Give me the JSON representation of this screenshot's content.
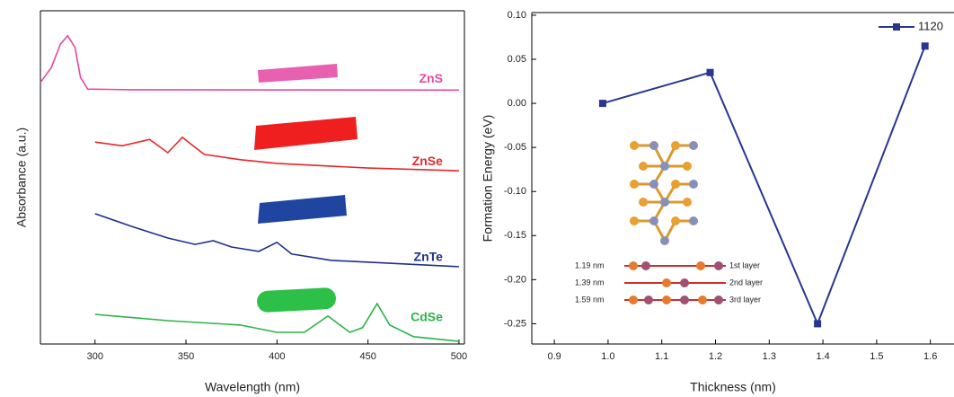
{
  "chart_data": [
    {
      "type": "line",
      "xlabel": "Wavelength (nm)",
      "ylabel": "Absorbance (a.u.)",
      "xlim": [
        270,
        503
      ],
      "ylim": [
        0,
        10
      ],
      "xticks": [
        300,
        350,
        400,
        450,
        500
      ],
      "series": [
        {
          "name": "ZnS",
          "color": "#e8489c",
          "x": [
            270,
            276,
            281,
            285,
            289,
            292,
            296,
            320,
            500
          ],
          "values": [
            7.85,
            8.3,
            9.0,
            9.25,
            8.9,
            8.0,
            7.65,
            7.63,
            7.62
          ]
        },
        {
          "name": "ZnSe",
          "color": "#e8262a",
          "x": [
            300,
            315,
            330,
            340,
            348,
            360,
            380,
            400,
            450,
            500
          ],
          "values": [
            6.06,
            5.95,
            6.14,
            5.74,
            6.2,
            5.69,
            5.53,
            5.42,
            5.28,
            5.2
          ]
        },
        {
          "name": "ZnTe",
          "color": "#1f2f8f",
          "x": [
            300,
            320,
            340,
            355,
            365,
            375,
            390,
            400,
            408,
            430,
            500
          ],
          "values": [
            3.91,
            3.53,
            3.18,
            2.99,
            3.1,
            2.91,
            2.78,
            3.05,
            2.7,
            2.51,
            2.32
          ]
        },
        {
          "name": "CdSe",
          "color": "#2bb34a",
          "x": [
            300,
            340,
            380,
            400,
            415,
            428,
            440,
            447,
            455,
            462,
            475,
            500
          ],
          "values": [
            0.89,
            0.7,
            0.57,
            0.35,
            0.35,
            0.84,
            0.35,
            0.49,
            1.21,
            0.57,
            0.22,
            0.08
          ]
        }
      ]
    },
    {
      "type": "line",
      "xlabel": "Thickness (nm)",
      "ylabel": "Formation Energy (eV)",
      "xlim": [
        0.858,
        1.644
      ],
      "ylim": [
        -0.273,
        0.103
      ],
      "xticks": [
        0.9,
        {
          "value": 1.0,
          "label": "1.0"
        },
        1.1,
        1.2,
        1.3,
        1.4,
        1.5,
        1.6
      ],
      "yticks": [
        {
          "value": 0.1,
          "label": "0.10"
        },
        0.05,
        {
          "value": 0,
          "label": "0.00"
        },
        -0.05,
        {
          "value": -0.1,
          "label": "-0.10"
        },
        -0.15,
        {
          "value": -0.2,
          "label": "-0.20"
        },
        -0.25
      ],
      "series": [
        {
          "name": "1120",
          "color": "#2a3590",
          "x": [
            0.99,
            1.19,
            1.39,
            1.59
          ],
          "values": [
            0.0,
            0.035,
            -0.25,
            0.065
          ]
        }
      ],
      "inset_labels": [
        {
          "thickness": "1.19 nm",
          "layer": "1st layer"
        },
        {
          "thickness": "1.39 nm",
          "layer": "2nd layer"
        },
        {
          "thickness": "1.59 nm",
          "layer": "3rd layer"
        }
      ]
    }
  ]
}
